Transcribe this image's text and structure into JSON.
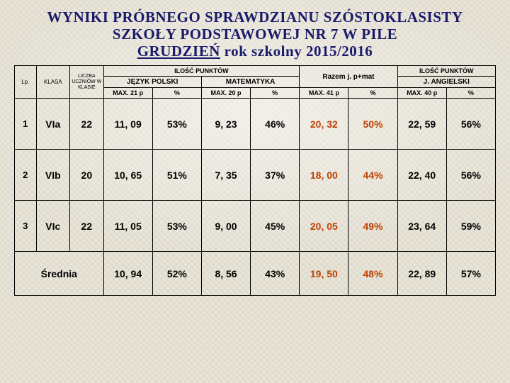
{
  "title": {
    "line1": "WYNIKI PRÓBNEGO SPRAWDZIANU SZÓSTOKLASISTY",
    "line2": "SZKOŁY PODSTAWOWEJ NR 7 W PILE",
    "line3_u": "GRUDZIEŃ",
    "line3_rest": " rok szkolny  2015/2016"
  },
  "headers": {
    "ilosc": "ILOŚĆ PUNKTÓW",
    "jpol": "JĘZYK POLSKI",
    "mat": "MATEMATYKA",
    "razem": "Razem  j. p+mat",
    "jang": "J. ANGIELSKI",
    "lp": "Lp.",
    "klasa": "KLASA",
    "liczba": "LICZBA UCZNIÓW W KLASIE",
    "max21": "MAX. 21 p",
    "max20": "MAX. 20 p",
    "max41": "MAX. 41 p",
    "max40": "MAX. 40 p",
    "pct": "%"
  },
  "rows": [
    {
      "lp": "1",
      "klasa": "VIa",
      "liczba": "22",
      "jp_v": "11, 09",
      "jp_p": "53%",
      "m_v": "9, 23",
      "m_p": "46%",
      "r_v": "20, 32",
      "r_p": "50%",
      "a_v": "22, 59",
      "a_p": "56%"
    },
    {
      "lp": "2",
      "klasa": "VIb",
      "liczba": "20",
      "jp_v": "10, 65",
      "jp_p": "51%",
      "m_v": "7, 35",
      "m_p": "37%",
      "r_v": "18, 00",
      "r_p": "44%",
      "a_v": "22, 40",
      "a_p": "56%"
    },
    {
      "lp": "3",
      "klasa": "VIc",
      "liczba": "22",
      "jp_v": "11, 05",
      "jp_p": "53%",
      "m_v": "9, 00",
      "m_p": "45%",
      "r_v": "20, 05",
      "r_p": "49%",
      "a_v": "23, 64",
      "a_p": "59%"
    }
  ],
  "average": {
    "label": "Średnia",
    "jp_v": "10, 94",
    "jp_p": "52%",
    "m_v": "8, 56",
    "m_p": "43%",
    "r_v": "19, 50",
    "r_p": "48%",
    "a_v": "22, 89",
    "a_p": "57%"
  },
  "colors": {
    "title": "#1a1a6a",
    "sum": "#c04000",
    "bg": "#e8e4d8"
  }
}
